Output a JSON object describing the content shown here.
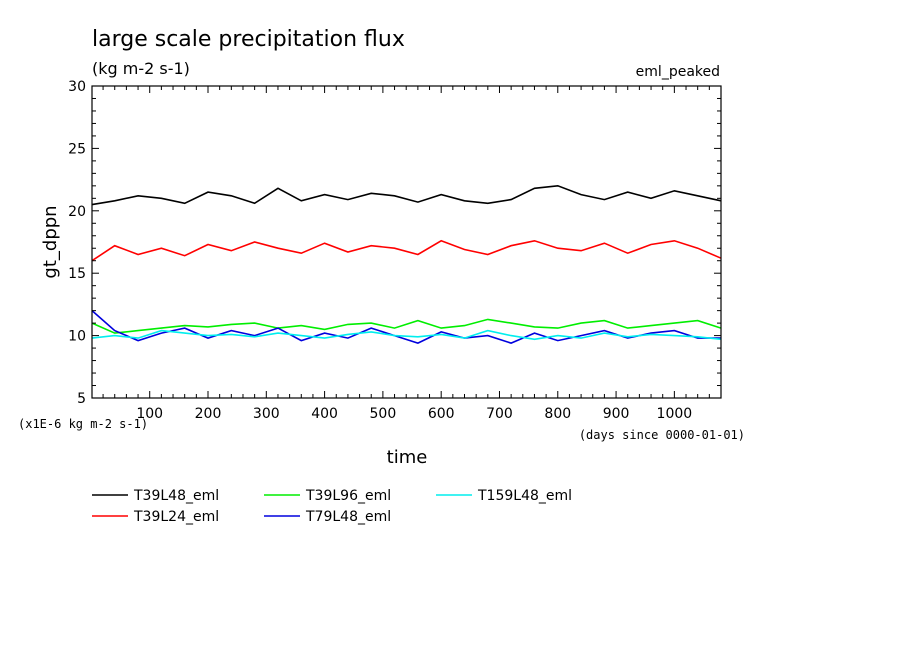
{
  "chart_data": {
    "type": "line",
    "title": "large scale precipitation flux",
    "subtitle": "(kg m-2 s-1)",
    "tag": "eml_peaked",
    "xlabel": "time",
    "ylabel": "gt_dppn",
    "y_unit_note": "(x1E-6 kg m-2 s-1)",
    "x_unit_note": "(days since 0000-01-01)",
    "xlim": [
      1,
      1080
    ],
    "ylim": [
      5,
      30
    ],
    "xticks": [
      100,
      200,
      300,
      400,
      500,
      600,
      700,
      800,
      900,
      1000
    ],
    "yticks": [
      5,
      10,
      15,
      20,
      25,
      30
    ],
    "grid": false,
    "legend_position": "bottom",
    "series": [
      {
        "name": "T39L48_eml",
        "color": "#000000",
        "x": [
          1,
          40,
          80,
          120,
          160,
          200,
          240,
          280,
          320,
          360,
          400,
          440,
          480,
          520,
          560,
          600,
          640,
          680,
          720,
          760,
          800,
          840,
          880,
          920,
          960,
          1000,
          1040,
          1080
        ],
        "values": [
          20.5,
          20.8,
          21.2,
          21.0,
          20.6,
          21.5,
          21.2,
          20.6,
          21.8,
          20.8,
          21.3,
          20.9,
          21.4,
          21.2,
          20.7,
          21.3,
          20.8,
          20.6,
          20.9,
          21.8,
          22.0,
          21.3,
          20.9,
          21.5,
          21.0,
          21.6,
          21.2,
          20.8
        ]
      },
      {
        "name": "T39L24_eml",
        "color": "#ff0000",
        "x": [
          1,
          40,
          80,
          120,
          160,
          200,
          240,
          280,
          320,
          360,
          400,
          440,
          480,
          520,
          560,
          600,
          640,
          680,
          720,
          760,
          800,
          840,
          880,
          920,
          960,
          1000,
          1040,
          1080
        ],
        "values": [
          16.0,
          17.2,
          16.5,
          17.0,
          16.4,
          17.3,
          16.8,
          17.5,
          17.0,
          16.6,
          17.4,
          16.7,
          17.2,
          17.0,
          16.5,
          17.6,
          16.9,
          16.5,
          17.2,
          17.6,
          17.0,
          16.8,
          17.4,
          16.6,
          17.3,
          17.6,
          17.0,
          16.2
        ]
      },
      {
        "name": "T39L96_eml",
        "color": "#00ee00",
        "x": [
          1,
          40,
          80,
          120,
          160,
          200,
          240,
          280,
          320,
          360,
          400,
          440,
          480,
          520,
          560,
          600,
          640,
          680,
          720,
          760,
          800,
          840,
          880,
          920,
          960,
          1000,
          1040,
          1080
        ],
        "values": [
          11.0,
          10.2,
          10.4,
          10.6,
          10.8,
          10.7,
          10.9,
          11.0,
          10.6,
          10.8,
          10.5,
          10.9,
          11.0,
          10.6,
          11.2,
          10.6,
          10.8,
          11.3,
          11.0,
          10.7,
          10.6,
          11.0,
          11.2,
          10.6,
          10.8,
          11.0,
          11.2,
          10.6
        ]
      },
      {
        "name": "T79L48_eml",
        "color": "#0000dd",
        "x": [
          1,
          40,
          80,
          120,
          160,
          200,
          240,
          280,
          320,
          360,
          400,
          440,
          480,
          520,
          560,
          600,
          640,
          680,
          720,
          760,
          800,
          840,
          880,
          920,
          960,
          1000,
          1040,
          1080
        ],
        "values": [
          12.0,
          10.4,
          9.6,
          10.2,
          10.6,
          9.8,
          10.4,
          10.0,
          10.6,
          9.6,
          10.2,
          9.8,
          10.6,
          10.0,
          9.4,
          10.3,
          9.8,
          10.0,
          9.4,
          10.2,
          9.6,
          10.0,
          10.4,
          9.8,
          10.2,
          10.4,
          9.8,
          9.8
        ]
      },
      {
        "name": "T159L48_eml",
        "color": "#00eeee",
        "x": [
          1,
          40,
          80,
          120,
          160,
          200,
          240,
          280,
          320,
          360,
          400,
          440,
          480,
          520,
          560,
          600,
          640,
          680,
          720,
          760,
          800,
          840,
          880,
          920,
          960,
          1000,
          1040,
          1080
        ],
        "values": [
          9.8,
          10.0,
          9.8,
          10.4,
          10.2,
          10.0,
          10.1,
          9.9,
          10.2,
          10.0,
          9.8,
          10.1,
          10.3,
          10.0,
          9.9,
          10.1,
          9.8,
          10.4,
          10.0,
          9.7,
          10.0,
          9.8,
          10.2,
          9.9,
          10.1,
          10.0,
          9.9,
          9.7
        ]
      }
    ]
  }
}
